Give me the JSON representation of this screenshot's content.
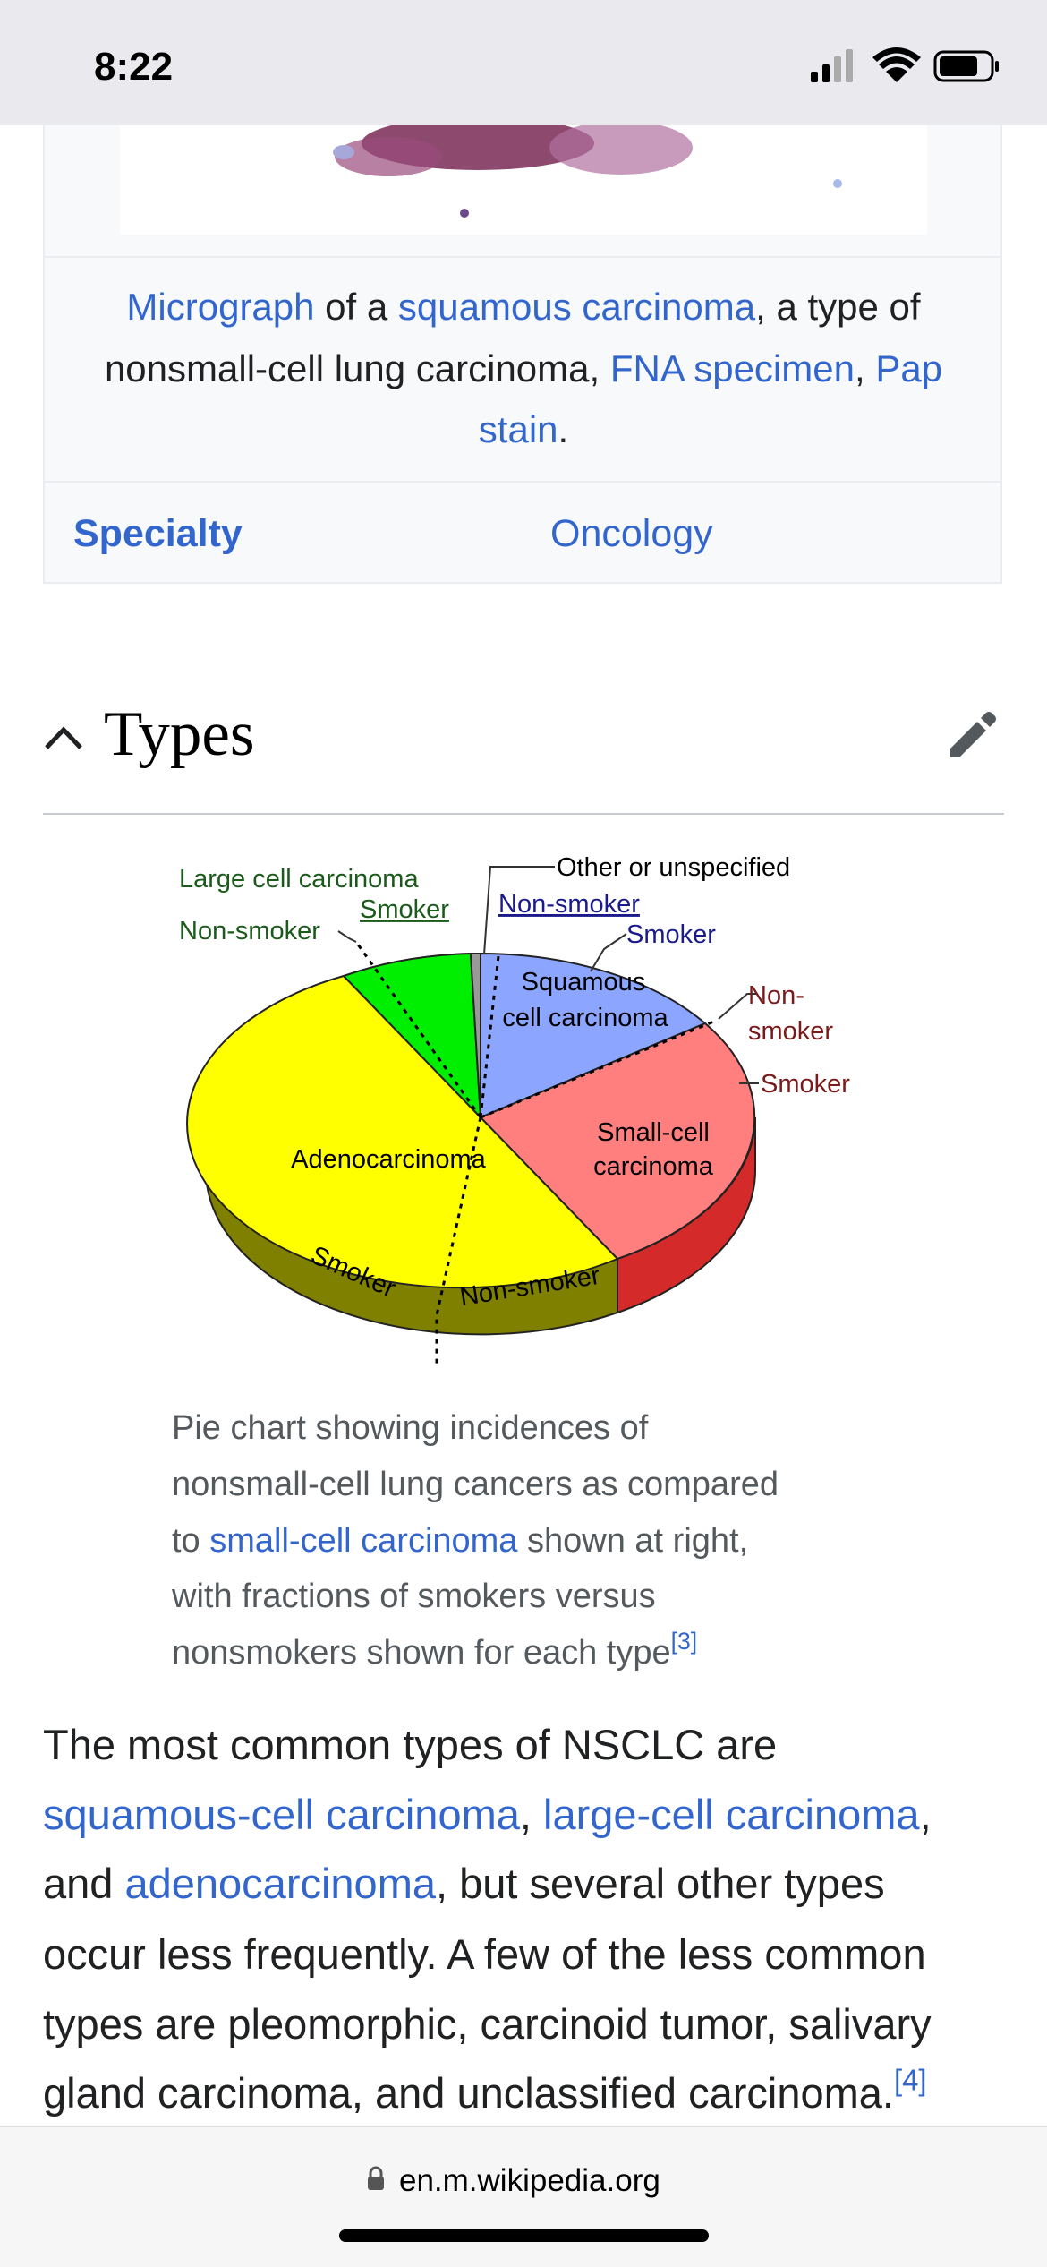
{
  "status_bar": {
    "time": "8:22"
  },
  "infobox": {
    "caption": [
      [
        "Micrograph",
        " of a ",
        "squamous carcinoma",
        ", a type of"
      ],
      [
        "nonsmall-cell lung carcinoma, ",
        "FNA specimen",
        ", ",
        "Pap"
      ],
      [
        "stain",
        "."
      ]
    ],
    "specialty": {
      "label": "Specialty",
      "value": "Oncology"
    }
  },
  "section": {
    "heading": "Types"
  },
  "figure": {
    "chart_labels": {
      "large_cell": "Large cell carcinoma",
      "large_cell_smoker": "Smoker",
      "large_cell_non_smoker": "Non-smoker",
      "other": "Other or unspecified",
      "squamous_non_smoker": "Non-smoker",
      "squamous_smoker": "Smoker",
      "squamous": [
        "Squamous",
        "cell carcinoma"
      ],
      "small_cell_non_smoker": [
        "Non-",
        "smoker"
      ],
      "small_cell_smoker": "Smoker",
      "small_cell": [
        "Small-cell",
        "carcinoma"
      ],
      "adeno": "Adenocarcinoma",
      "adeno_smoker": "Smoker",
      "adeno_non_smoker": "Non-smoker"
    },
    "caption": [
      [
        "Pie chart showing incidences of"
      ],
      [
        "nonsmall-cell lung cancers as compared"
      ],
      [
        "to ",
        "small-cell carcinoma",
        " shown at right,"
      ],
      [
        "with fractions of smokers versus"
      ],
      [
        "nonsmokers shown for each type",
        "[3]"
      ]
    ]
  },
  "paragraph": [
    [
      "The most common types of NSCLC are"
    ],
    [
      "squamous-cell carcinoma",
      ", ",
      "large-cell carcinoma",
      ","
    ],
    [
      "and ",
      "adenocarcinoma",
      ", but several other types"
    ],
    [
      "occur less frequently. A few of the less common"
    ],
    [
      "types are pleomorphic, carcinoid tumor, salivary"
    ],
    [
      "gland carcinoma, and unclassified carcinoma.",
      "[4]"
    ]
  ],
  "browser": {
    "url": "en.m.wikipedia.org"
  }
}
